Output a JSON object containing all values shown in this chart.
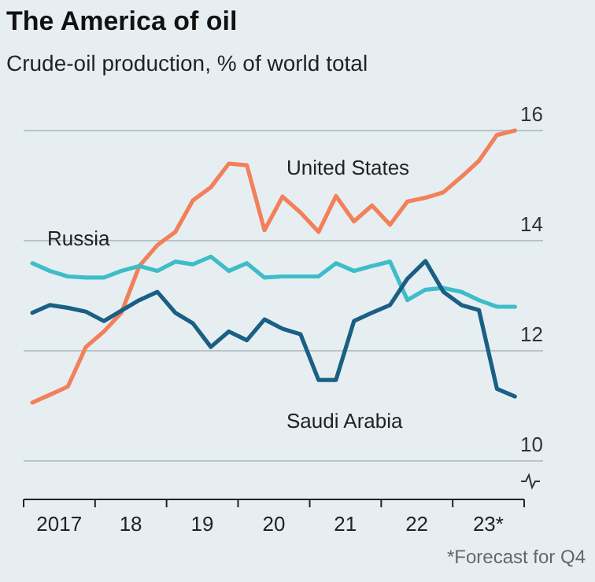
{
  "chart_data": {
    "type": "line",
    "title": "The America of oil",
    "subtitle": "Crude-oil production, % of world total",
    "x": [
      "2017-02-15",
      "2017-05-15",
      "2017-08-15",
      "2017-11-15",
      "2018-02-15",
      "2018-05-15",
      "2018-08-15",
      "2018-11-15",
      "2019-02-15",
      "2019-05-15",
      "2019-08-15",
      "2019-11-15",
      "2020-02-15",
      "2020-05-15",
      "2020-08-15",
      "2020-11-15",
      "2021-02-15",
      "2021-05-15",
      "2021-08-15",
      "2021-11-15",
      "2022-02-15",
      "2022-05-15",
      "2022-08-15",
      "2022-11-15",
      "2023-02-15",
      "2023-05-15",
      "2023-08-15",
      "2023-11-15"
    ],
    "series": [
      {
        "name": "United States",
        "color": "#f2805a",
        "values": [
          11.06,
          11.2,
          11.35,
          12.07,
          12.35,
          12.69,
          13.54,
          13.92,
          14.16,
          14.73,
          14.97,
          15.4,
          15.37,
          14.19,
          14.8,
          14.51,
          14.16,
          14.81,
          14.35,
          14.64,
          14.29,
          14.71,
          14.78,
          14.88,
          15.16,
          15.45,
          15.92,
          16.0
        ]
      },
      {
        "name": "Russia",
        "color": "#3ebdc9",
        "values": [
          13.59,
          13.45,
          13.35,
          13.33,
          13.33,
          13.45,
          13.54,
          13.45,
          13.62,
          13.57,
          13.71,
          13.45,
          13.59,
          13.33,
          13.35,
          13.35,
          13.35,
          13.59,
          13.45,
          13.54,
          13.62,
          12.92,
          13.11,
          13.14,
          13.07,
          12.92,
          12.8,
          12.8
        ]
      },
      {
        "name": "Saudi Arabia",
        "color": "#1a5f84",
        "values": [
          12.69,
          12.83,
          12.78,
          12.71,
          12.54,
          12.73,
          12.92,
          13.07,
          12.69,
          12.5,
          12.07,
          12.35,
          12.19,
          12.57,
          12.4,
          12.3,
          11.47,
          11.47,
          12.54,
          12.69,
          12.83,
          13.31,
          13.63,
          13.07,
          12.83,
          12.74,
          11.31,
          11.17
        ]
      }
    ],
    "xlim": [
      "2017",
      "2024"
    ],
    "xticks": [
      {
        "value": "2017",
        "label": null
      },
      {
        "value": "2017-07-02",
        "label": "2017"
      },
      {
        "value": "2018",
        "label": null
      },
      {
        "value": "2018-07-02",
        "label": "18"
      },
      {
        "value": "2019",
        "label": null
      },
      {
        "value": "2019-07-02",
        "label": "19"
      },
      {
        "value": "2020",
        "label": null
      },
      {
        "value": "2020-07-02",
        "label": "20"
      },
      {
        "value": "2021",
        "label": null
      },
      {
        "value": "2021-07-02",
        "label": "21"
      },
      {
        "value": "2022",
        "label": null
      },
      {
        "value": "2022-07-02",
        "label": "22"
      },
      {
        "value": "2023",
        "label": null
      },
      {
        "value": "2023-07-02",
        "label": "23*"
      },
      {
        "value": "2024",
        "label": null
      }
    ],
    "ylim": [
      9.3,
      16
    ],
    "yticks": [
      10,
      12,
      14,
      16
    ],
    "grid": "y",
    "annotations": [
      "*Forecast for Q4"
    ]
  }
}
